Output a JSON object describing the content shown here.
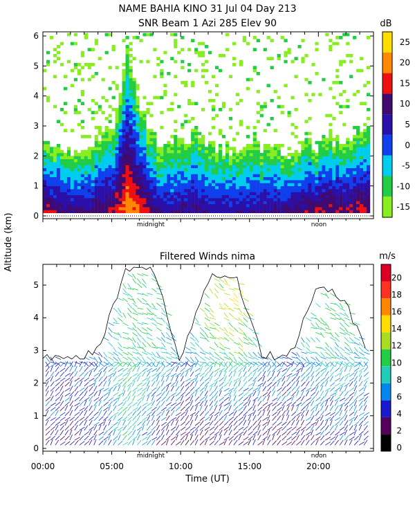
{
  "header": {
    "title_line1": "NAME BAHIA KINO  31 Jul 04 Day 213",
    "title_line2": "SNR Beam 1 Azi 285 Elev 90"
  },
  "shared": {
    "ylabel": "Altitude (km)",
    "xlabel": "Time (UT)",
    "midnight_label": "midnight",
    "noon_label": "noon",
    "x_ticks": [
      "00:00",
      "05:00",
      "10:00",
      "15:00",
      "20:00"
    ]
  },
  "chart_data": [
    {
      "type": "heatmap",
      "title": "SNR Beam 1 Azi 285 Elev 90",
      "xlabel": "Time (UT)",
      "ylabel": "Altitude (km)",
      "xlim": [
        0,
        24
      ],
      "ylim": [
        0,
        6
      ],
      "y_ticks": [
        "0",
        "1",
        "2",
        "3",
        "4",
        "5",
        "6"
      ],
      "colorbar": {
        "unit": "dB",
        "tick_labels": [
          "-15",
          "-10",
          "-5",
          "0",
          "5",
          "10",
          "15",
          "20",
          "25"
        ],
        "levels": [
          -15,
          -10,
          -5,
          0,
          5,
          10,
          15,
          20,
          25,
          30
        ],
        "colors": [
          "#88ee22",
          "#22cc44",
          "#00ccee",
          "#1040ee",
          "#2a10a8",
          "#400a6e",
          "#ee1010",
          "#ff8800",
          "#ffdd00"
        ]
      },
      "profile_shape_estimated": {
        "times": [
          0,
          1,
          2,
          3,
          4,
          5,
          6,
          7,
          8,
          9,
          10,
          11,
          12,
          13,
          14,
          15,
          16,
          17,
          18,
          19,
          20,
          21,
          22,
          23,
          23.5
        ],
        "echo_top_km": [
          2.7,
          2.1,
          2.0,
          2.2,
          2.5,
          3.0,
          5.5,
          3.5,
          2.5,
          2.2,
          2.6,
          2.7,
          2.4,
          2.2,
          2.3,
          2.3,
          2.2,
          2.1,
          2.2,
          2.3,
          2.4,
          2.5,
          2.6,
          2.8,
          3.0
        ],
        "peak_snr_db": [
          18,
          14,
          12,
          13,
          14,
          16,
          25,
          20,
          12,
          10,
          12,
          13,
          10,
          9,
          10,
          11,
          11,
          12,
          14,
          15,
          16,
          16,
          16,
          17,
          17
        ]
      }
    },
    {
      "type": "scatter",
      "title": "Filtered Winds nima",
      "xlabel": "Time (UT)",
      "ylabel": "Altitude (km)",
      "xlim": [
        0,
        24
      ],
      "ylim": [
        0,
        5.6
      ],
      "y_ticks": [
        "0",
        "1",
        "2",
        "3",
        "4",
        "5"
      ],
      "colorbar": {
        "unit": "m/s",
        "tick_labels": [
          "0",
          "2",
          "4",
          "6",
          "8",
          "10",
          "12",
          "14",
          "16",
          "18",
          "20"
        ],
        "levels": [
          0,
          2,
          4,
          6,
          8,
          10,
          12,
          14,
          16,
          18,
          20,
          22
        ],
        "colors": [
          "#000000",
          "#55005a",
          "#1818cc",
          "#0088ee",
          "#22ccbb",
          "#22cc44",
          "#aadd22",
          "#ffdd00",
          "#ff8800",
          "#ff3322",
          "#dd0022"
        ]
      },
      "wind_field_estimated": {
        "times": [
          0,
          2,
          4,
          6,
          8,
          10,
          12,
          14,
          16,
          18,
          20,
          22,
          23.5
        ],
        "coverage_top_km": [
          2.9,
          2.7,
          3.0,
          5.4,
          5.5,
          2.7,
          5.2,
          5.3,
          2.8,
          2.9,
          5.0,
          4.5,
          2.9
        ],
        "low_level_speed_ms": [
          4,
          4,
          5,
          9,
          5,
          3,
          3,
          3,
          3,
          4,
          4,
          5,
          5
        ],
        "upper_level_speed_ms": [
          7,
          6,
          7,
          11,
          10,
          8,
          13,
          14,
          8,
          7,
          11,
          10,
          9
        ]
      }
    }
  ]
}
